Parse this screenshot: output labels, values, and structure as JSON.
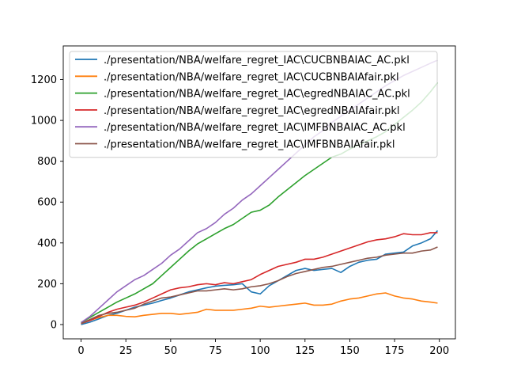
{
  "chart_data": {
    "type": "line",
    "title": "",
    "xlabel": "",
    "ylabel": "",
    "xlim": [
      -9.95,
      208.95
    ],
    "ylim": [
      -70,
      1365
    ],
    "xticks": [
      0,
      25,
      50,
      75,
      100,
      125,
      150,
      175,
      200
    ],
    "yticks": [
      0,
      200,
      400,
      600,
      800,
      1000,
      1200
    ],
    "grid": false,
    "legend_position": "upper-left",
    "series": [
      {
        "name": "./presentation/NBA/welfare_regret_IAC\\CUCBNBAIAC_AC.pkl",
        "color": "#1f77b4",
        "x": [
          0,
          5,
          10,
          15,
          20,
          25,
          30,
          35,
          40,
          45,
          50,
          55,
          60,
          65,
          70,
          75,
          80,
          85,
          90,
          95,
          100,
          105,
          110,
          115,
          120,
          125,
          130,
          135,
          140,
          145,
          150,
          155,
          160,
          165,
          170,
          175,
          180,
          185,
          190,
          195,
          199
        ],
        "y": [
          0,
          12,
          28,
          45,
          55,
          70,
          85,
          95,
          105,
          118,
          130,
          145,
          160,
          170,
          180,
          188,
          192,
          195,
          200,
          160,
          150,
          190,
          215,
          240,
          265,
          275,
          265,
          270,
          275,
          255,
          285,
          305,
          315,
          320,
          345,
          350,
          355,
          385,
          400,
          420,
          460
        ]
      },
      {
        "name": "./presentation/NBA/welfare_regret_IAC\\CUCBNBAIAfair.pkl",
        "color": "#ff7f0e",
        "x": [
          0,
          5,
          10,
          15,
          20,
          25,
          30,
          35,
          40,
          45,
          50,
          55,
          60,
          65,
          70,
          75,
          80,
          85,
          90,
          95,
          100,
          105,
          110,
          115,
          120,
          125,
          130,
          135,
          140,
          145,
          150,
          155,
          160,
          165,
          170,
          175,
          180,
          185,
          190,
          195,
          199
        ],
        "y": [
          5,
          20,
          35,
          45,
          45,
          40,
          38,
          45,
          50,
          55,
          55,
          50,
          55,
          60,
          75,
          70,
          70,
          70,
          75,
          80,
          90,
          85,
          90,
          95,
          100,
          105,
          95,
          95,
          100,
          115,
          125,
          130,
          140,
          150,
          155,
          140,
          130,
          125,
          115,
          110,
          105
        ]
      },
      {
        "name": "./presentation/NBA/welfare_regret_IAC\\egredNBAIAC_AC.pkl",
        "color": "#2ca02c",
        "x": [
          0,
          5,
          10,
          15,
          20,
          25,
          30,
          35,
          40,
          45,
          50,
          55,
          60,
          65,
          70,
          75,
          80,
          85,
          90,
          95,
          100,
          105,
          110,
          115,
          120,
          125,
          130,
          135,
          140,
          145,
          150,
          155,
          160,
          165,
          170,
          175,
          180,
          185,
          190,
          195,
          199
        ],
        "y": [
          10,
          35,
          60,
          85,
          110,
          130,
          150,
          175,
          200,
          240,
          280,
          320,
          360,
          395,
          420,
          445,
          470,
          490,
          520,
          550,
          560,
          585,
          625,
          660,
          695,
          730,
          760,
          790,
          820,
          835,
          860,
          880,
          900,
          920,
          945,
          980,
          1015,
          1050,
          1090,
          1140,
          1185
        ]
      },
      {
        "name": "./presentation/NBA/welfare_regret_IAC\\egredNBAIAfair.pkl",
        "color": "#d62728",
        "x": [
          0,
          5,
          10,
          15,
          20,
          25,
          30,
          35,
          40,
          45,
          50,
          55,
          60,
          65,
          70,
          75,
          80,
          85,
          90,
          95,
          100,
          105,
          110,
          115,
          120,
          125,
          130,
          135,
          140,
          145,
          150,
          155,
          160,
          165,
          170,
          175,
          180,
          185,
          190,
          195,
          199
        ],
        "y": [
          5,
          20,
          40,
          60,
          75,
          85,
          95,
          110,
          130,
          150,
          170,
          180,
          185,
          195,
          200,
          195,
          205,
          200,
          210,
          220,
          245,
          265,
          285,
          295,
          305,
          320,
          320,
          330,
          345,
          360,
          375,
          390,
          405,
          415,
          420,
          430,
          445,
          440,
          440,
          450,
          450
        ]
      },
      {
        "name": "./presentation/NBA/welfare_regret_IAC\\IMFBNBAIAC_AC.pkl",
        "color": "#9467bd",
        "x": [
          0,
          5,
          10,
          15,
          20,
          25,
          30,
          35,
          40,
          45,
          50,
          55,
          60,
          65,
          70,
          75,
          80,
          85,
          90,
          95,
          100,
          105,
          110,
          115,
          120,
          125,
          130,
          135,
          140,
          145,
          150,
          155,
          160,
          165,
          170,
          175,
          180,
          185,
          190,
          195,
          199
        ],
        "y": [
          10,
          40,
          80,
          120,
          160,
          190,
          220,
          240,
          270,
          300,
          340,
          370,
          410,
          450,
          470,
          500,
          540,
          570,
          610,
          640,
          680,
          720,
          760,
          800,
          840,
          880,
          920,
          950,
          990,
          1020,
          1050,
          1080,
          1110,
          1140,
          1170,
          1195,
          1220,
          1240,
          1260,
          1280,
          1295
        ]
      },
      {
        "name": "./presentation/NBA/welfare_regret_IAC\\IMFBNBAIAfair.pkl",
        "color": "#8c564b",
        "x": [
          0,
          5,
          10,
          15,
          20,
          25,
          30,
          35,
          40,
          45,
          50,
          55,
          60,
          65,
          70,
          75,
          80,
          85,
          90,
          95,
          100,
          105,
          110,
          115,
          120,
          125,
          130,
          135,
          140,
          145,
          150,
          155,
          160,
          165,
          170,
          175,
          180,
          185,
          190,
          195,
          199
        ],
        "y": [
          5,
          25,
          45,
          55,
          60,
          70,
          80,
          100,
          115,
          130,
          135,
          145,
          155,
          165,
          165,
          170,
          175,
          170,
          175,
          185,
          190,
          200,
          215,
          235,
          250,
          260,
          270,
          280,
          285,
          295,
          305,
          315,
          325,
          330,
          340,
          345,
          350,
          350,
          360,
          365,
          380
        ]
      }
    ]
  }
}
